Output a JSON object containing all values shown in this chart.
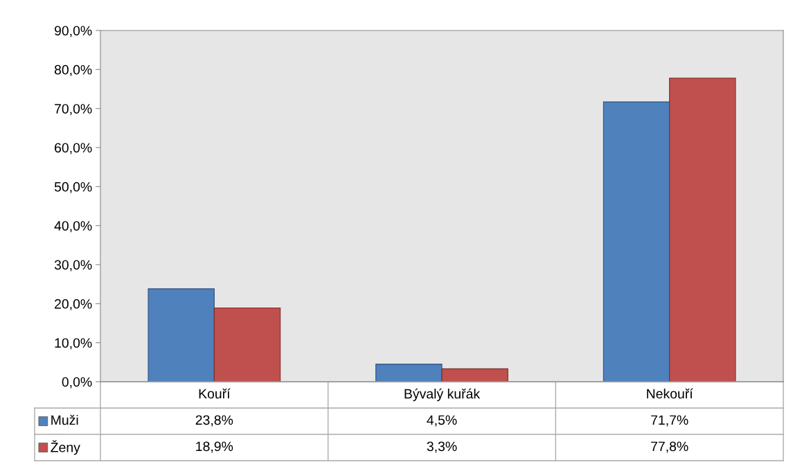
{
  "chart_data": {
    "type": "bar",
    "categories": [
      "Kouří",
      "Bývalý kuřák",
      "Nekouří"
    ],
    "series": [
      {
        "name": "Muži",
        "color": "#4f81bd",
        "values": [
          23.8,
          4.5,
          71.7
        ],
        "value_labels": [
          "23,8%",
          "4,5%",
          "71,7%"
        ]
      },
      {
        "name": "Ženy",
        "color": "#c0504d",
        "values": [
          18.9,
          3.3,
          77.8
        ],
        "value_labels": [
          "18,9%",
          "3,3%",
          "77,8%"
        ]
      }
    ],
    "ylim": [
      0,
      90
    ],
    "yticks": [
      {
        "value": 0,
        "label": "0,0%"
      },
      {
        "value": 10,
        "label": "10,0%"
      },
      {
        "value": 20,
        "label": "20,0%"
      },
      {
        "value": 30,
        "label": "30,0%"
      },
      {
        "value": 40,
        "label": "40,0%"
      },
      {
        "value": 50,
        "label": "50,0%"
      },
      {
        "value": 60,
        "label": "60,0%"
      },
      {
        "value": 70,
        "label": "70,0%"
      },
      {
        "value": 80,
        "label": "80,0%"
      },
      {
        "value": 90,
        "label": "90,0%"
      }
    ],
    "grid": false,
    "legend": "bottom"
  }
}
